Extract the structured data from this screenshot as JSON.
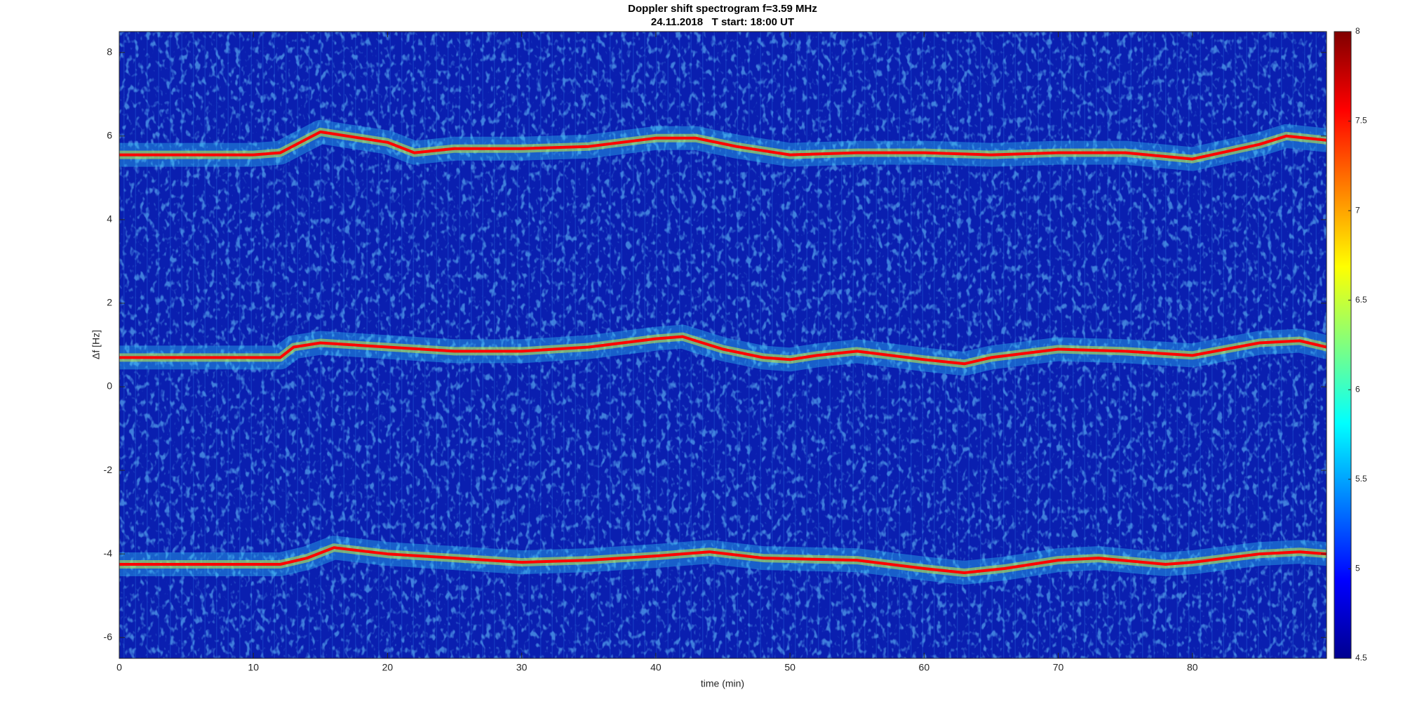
{
  "chart_data": {
    "type": "spectrogram",
    "title": "Doppler shift spectrogram f=3.59 MHz",
    "subtitle": "24.11.2018   T start: 18:00 UT",
    "x_label": "time (min)",
    "y_label": "Δf [Hz]",
    "xlim": [
      0,
      90
    ],
    "xticks": [
      0,
      10,
      20,
      30,
      40,
      50,
      60,
      70,
      80
    ],
    "ylim": [
      -6.5,
      8.5
    ],
    "yticks": [
      -6,
      -4,
      -2,
      0,
      2,
      4,
      6,
      8
    ],
    "clim": [
      4.5,
      8
    ],
    "cticks": [
      4.5,
      5,
      5.5,
      6,
      6.5,
      7,
      7.5,
      8
    ],
    "colormap": "jet",
    "series": [
      {
        "color": "#ff0000",
        "x": [
          0,
          10,
          12,
          15,
          20,
          22,
          25,
          30,
          35,
          40,
          43,
          46,
          50,
          55,
          60,
          65,
          70,
          75,
          80,
          85,
          87,
          90
        ],
        "values": [
          5.55,
          5.55,
          5.6,
          6.1,
          5.85,
          5.6,
          5.7,
          5.7,
          5.75,
          5.95,
          5.95,
          5.75,
          5.55,
          5.6,
          5.6,
          5.55,
          5.6,
          5.6,
          5.45,
          5.8,
          6.0,
          5.9
        ]
      },
      {
        "color": "#ff0000",
        "x": [
          0,
          12,
          13,
          15,
          20,
          25,
          30,
          35,
          40,
          42,
          45,
          48,
          50,
          52,
          55,
          60,
          63,
          65,
          70,
          75,
          80,
          85,
          88,
          90
        ],
        "values": [
          0.7,
          0.7,
          0.95,
          1.05,
          0.95,
          0.85,
          0.85,
          0.95,
          1.15,
          1.2,
          0.9,
          0.7,
          0.65,
          0.75,
          0.85,
          0.65,
          0.55,
          0.7,
          0.9,
          0.85,
          0.75,
          1.05,
          1.1,
          0.95
        ]
      },
      {
        "color": "#ff0000",
        "x": [
          0,
          12,
          14,
          16,
          20,
          25,
          30,
          35,
          40,
          44,
          48,
          55,
          60,
          63,
          66,
          70,
          73,
          78,
          80,
          85,
          88,
          90
        ],
        "values": [
          -4.25,
          -4.25,
          -4.1,
          -3.85,
          -4.0,
          -4.1,
          -4.2,
          -4.15,
          -4.05,
          -3.95,
          -4.1,
          -4.15,
          -4.35,
          -4.45,
          -4.35,
          -4.15,
          -4.1,
          -4.25,
          -4.2,
          -4.0,
          -3.95,
          -4.0
        ]
      }
    ]
  }
}
